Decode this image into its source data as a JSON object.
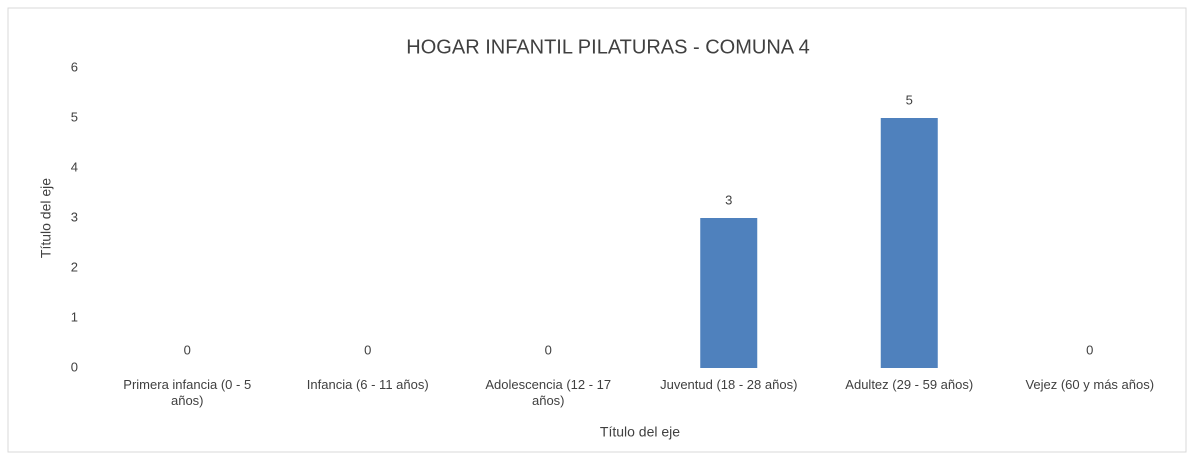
{
  "chart_data": {
    "type": "bar",
    "title": "HOGAR INFANTIL PILATURAS - COMUNA 4",
    "x_label": "Título del eje",
    "y_label": "Título del eje",
    "categories": [
      "Primera infancia (0 - 5 años)",
      "Infancia (6 - 11 años)",
      "Adolescencia (12 - 17 años)",
      "Juventud (18 - 28 años)",
      "Adultez (29 - 59 años)",
      "Vejez (60 y más años)"
    ],
    "values": [
      0,
      0,
      0,
      3,
      5,
      0
    ],
    "color": "#4f81bd",
    "ylim": [
      0,
      6
    ],
    "yticks": [
      0,
      1,
      2,
      3,
      4,
      5,
      6
    ],
    "grid": false
  }
}
